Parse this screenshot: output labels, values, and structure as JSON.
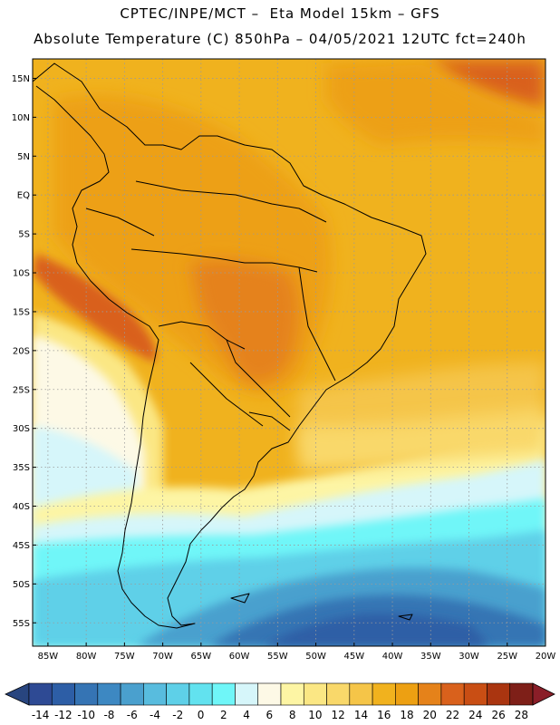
{
  "header": {
    "line1": "CPTEC/INPE/MCT –  Eta Model 15km – GFS",
    "line2": "Absolute Temperature (C) 850hPa – 04/05/2021 12UTC fct=240h"
  },
  "map": {
    "lat_labels": [
      "15N",
      "10N",
      "5N",
      "EQ",
      "5S",
      "10S",
      "15S",
      "20S",
      "25S",
      "30S",
      "35S",
      "40S",
      "45S",
      "50S",
      "55S"
    ],
    "lon_labels": [
      "85W",
      "80W",
      "75W",
      "70W",
      "65W",
      "60W",
      "55W",
      "50W",
      "45W",
      "40W",
      "35W",
      "30W",
      "25W",
      "20W"
    ],
    "lat_min": -58,
    "lat_max": 17.5,
    "lon_min": -87,
    "lon_max": -20
  },
  "colorbar": {
    "labels": [
      "-14",
      "-12",
      "-10",
      "-8",
      "-6",
      "-4",
      "-2",
      "0",
      "2",
      "4",
      "6",
      "8",
      "10",
      "12",
      "14",
      "16",
      "18",
      "20",
      "22",
      "24",
      "26",
      "28"
    ],
    "colors": [
      "#2e4a94",
      "#2d5ea6",
      "#3574b4",
      "#3d88c2",
      "#4aa0ce",
      "#58bcde",
      "#5ed0e8",
      "#62e2ef",
      "#6ff6f8",
      "#d6f6fa",
      "#fdf9e6",
      "#fdf5a4",
      "#fbe784",
      "#f9d86a",
      "#f5c548",
      "#f1b21e",
      "#eda012",
      "#e5821a",
      "#d9611c",
      "#c94e14",
      "#aa3510",
      "#7e1f18"
    ],
    "under_color": "#28457f",
    "over_color": "#8a1e28"
  },
  "legend_colors": {
    "border": "#000000",
    "grid": "#9a9a9a"
  }
}
